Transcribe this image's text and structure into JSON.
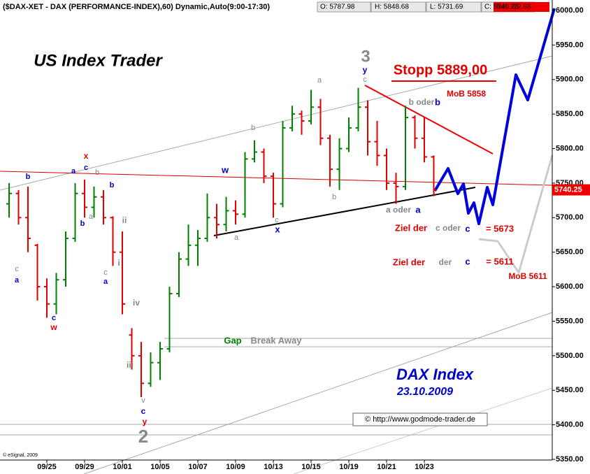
{
  "chart_data": {
    "type": "ohlc",
    "title": "($DAX-XET - DAX (PERFORMANCE-INDEX),60) Dynamic,Auto(9:00-17:30)",
    "quote": {
      "open": "O: 5787.98",
      "high": "H: 5848.68",
      "low": "L: 5731.69",
      "close": "C: 5740.25",
      "net": "Net: -22.68"
    },
    "last_label": "5740.25",
    "categories": [
      null,
      null,
      null,
      null,
      "09/25",
      null,
      null,
      null,
      "09/29",
      null,
      null,
      null,
      "10/01",
      null,
      null,
      null,
      "10/05",
      null,
      null,
      null,
      "10/07",
      null,
      null,
      null,
      "10/09",
      null,
      null,
      null,
      "10/13",
      null,
      null,
      null,
      "10/15",
      null,
      null,
      null,
      "10/19",
      null,
      null,
      null,
      "10/21",
      null,
      null,
      null,
      "10/23",
      null
    ],
    "open": [
      5720,
      5735,
      5700,
      5660,
      5600,
      5575,
      5610,
      5670,
      5735,
      5715,
      5730,
      5700,
      5650,
      5530,
      5500,
      5460,
      5490,
      5510,
      5590,
      5640,
      5660,
      5670,
      5700,
      5690,
      5710,
      5705,
      5785,
      5795,
      5760,
      5720,
      5830,
      5850,
      5840,
      5860,
      5815,
      5770,
      5800,
      5830,
      5860,
      5810,
      5790,
      5750,
      5745,
      5845,
      5815,
      5788
    ],
    "high": [
      5750,
      5740,
      5745,
      5662,
      5612,
      5620,
      5680,
      5750,
      5755,
      5745,
      5740,
      5702,
      5680,
      5540,
      5520,
      5505,
      5520,
      5600,
      5650,
      5690,
      5682,
      5735,
      5720,
      5730,
      5725,
      5795,
      5812,
      5800,
      5765,
      5840,
      5862,
      5855,
      5885,
      5872,
      5820,
      5815,
      5845,
      5888,
      5870,
      5840,
      5800,
      5765,
      5862,
      5848,
      5845,
      5790
    ],
    "low": [
      5700,
      5690,
      5650,
      5580,
      5555,
      5560,
      5600,
      5665,
      5700,
      5700,
      5690,
      5630,
      5560,
      5480,
      5440,
      5455,
      5465,
      5505,
      5585,
      5630,
      5630,
      5665,
      5670,
      5680,
      5690,
      5700,
      5780,
      5750,
      5700,
      5715,
      5825,
      5820,
      5835,
      5805,
      5745,
      5740,
      5795,
      5825,
      5790,
      5775,
      5740,
      5720,
      5740,
      5800,
      5780,
      5731
    ],
    "close": [
      5735,
      5700,
      5670,
      5600,
      5575,
      5610,
      5670,
      5735,
      5715,
      5730,
      5700,
      5650,
      5575,
      5500,
      5460,
      5490,
      5510,
      5590,
      5640,
      5660,
      5670,
      5700,
      5690,
      5710,
      5705,
      5785,
      5795,
      5760,
      5720,
      5830,
      5850,
      5840,
      5860,
      5815,
      5770,
      5800,
      5830,
      5860,
      5810,
      5790,
      5750,
      5745,
      5845,
      5815,
      5788,
      5740.25
    ],
    "up_color": "#008000",
    "down_color": "#e00000",
    "ylim": [
      5350,
      6000
    ],
    "yticks": [
      {
        "value": 5350,
        "label": "5350.00"
      },
      {
        "value": 5400,
        "label": "5400.00"
      },
      {
        "value": 5450,
        "label": "5450.00"
      },
      {
        "value": 5500,
        "label": "5500.00"
      },
      {
        "value": 5550,
        "label": "5550.00"
      },
      {
        "value": 5600,
        "label": "5600.00"
      },
      {
        "value": 5650,
        "label": "5650.00"
      },
      {
        "value": 5700,
        "label": "5700.00"
      },
      {
        "value": 5750,
        "label": "5750.00"
      },
      {
        "value": 5800,
        "label": "5800.00"
      },
      {
        "value": 5850,
        "label": "5850.00"
      },
      {
        "value": 5900,
        "label": "5900.00"
      },
      {
        "value": 5950,
        "label": "5950.00"
      },
      {
        "value": 6000,
        "label": "6000.00"
      }
    ],
    "annotations": [
      {
        "text": "US Index Trader",
        "color": "#000000"
      },
      {
        "text": "Stopp 5889,00",
        "color": "#e00000"
      },
      {
        "text": "MoB 5858",
        "color": "#e00000"
      },
      {
        "text": "3",
        "color": "#888888"
      },
      {
        "text": "y",
        "color": "#0000cc"
      },
      {
        "text": "c",
        "color": "#888888"
      },
      {
        "text": "a",
        "color": "#888888"
      },
      {
        "text": "b oder",
        "color": "#888888"
      },
      {
        "text": "b",
        "color": "#0000cc"
      },
      {
        "text": "b",
        "color": "#888888"
      },
      {
        "text": "w",
        "color": "#0000cc"
      },
      {
        "text": "c",
        "color": "#888888"
      },
      {
        "text": "x",
        "color": "#0000cc"
      },
      {
        "text": "a",
        "color": "#888888"
      },
      {
        "text": "b",
        "color": "#888888"
      },
      {
        "text": "a oder",
        "color": "#888888"
      },
      {
        "text": "a",
        "color": "#0000cc"
      },
      {
        "text": "Ziel der",
        "color": "#e00000"
      },
      {
        "text": "c oder",
        "color": "#888888"
      },
      {
        "text": "c",
        "color": "#0000cc"
      },
      {
        "text": "= 5673",
        "color": "#e00000"
      },
      {
        "text": "Ziel der",
        "color": "#e00000"
      },
      {
        "text": "der",
        "color": "#888888"
      },
      {
        "text": "c",
        "color": "#0000cc"
      },
      {
        "text": "= 5611",
        "color": "#e00000"
      },
      {
        "text": "MoB 5611",
        "color": "#e00000"
      },
      {
        "text": "Gap",
        "color": "#008000"
      },
      {
        "text": "Break Away",
        "color": "#888888"
      },
      {
        "text": "DAX Index",
        "color": "#0000cc"
      },
      {
        "text": "23.10.2009",
        "color": "#0000cc"
      },
      {
        "text": "© http://www.godmode-trader.de",
        "color": "#000000"
      },
      {
        "text": "© eSignal, 2009",
        "color": "#000000"
      },
      {
        "text": "b",
        "color": "#0000cc"
      },
      {
        "text": "c",
        "color": "#888888"
      },
      {
        "text": "a",
        "color": "#0000cc"
      },
      {
        "text": "a",
        "color": "#0000cc"
      },
      {
        "text": "x",
        "color": "#e00000"
      },
      {
        "text": "c",
        "color": "#0000cc"
      },
      {
        "text": "b",
        "color": "#888888"
      },
      {
        "text": "b",
        "color": "#0000cc"
      },
      {
        "text": "a",
        "color": "#888888"
      },
      {
        "text": "b",
        "color": "#0000cc"
      },
      {
        "text": "ii",
        "color": "#888888"
      },
      {
        "text": "i",
        "color": "#888888"
      },
      {
        "text": "c",
        "color": "#888888"
      },
      {
        "text": "a",
        "color": "#0000cc"
      },
      {
        "text": "c",
        "color": "#0000cc"
      },
      {
        "text": "w",
        "color": "#e00000"
      },
      {
        "text": "iv",
        "color": "#888888"
      },
      {
        "text": "iii",
        "color": "#888888"
      },
      {
        "text": "v",
        "color": "#888888"
      },
      {
        "text": "c",
        "color": "#0000cc"
      },
      {
        "text": "y",
        "color": "#e00000"
      },
      {
        "text": "2",
        "color": "#888888"
      }
    ]
  }
}
